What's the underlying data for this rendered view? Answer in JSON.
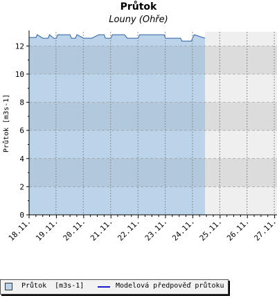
{
  "title": "Průtok",
  "subtitle": "Louny (Ohře)",
  "legend": {
    "item1": "Průtok  [m3s-1]",
    "item2": "Modelová předpověď průtoku"
  },
  "colors": {
    "area_fill": "#bcd4ea",
    "area_line": "#2a5f9e",
    "forecast_line": "#1a1acc",
    "band_observed": "#a8bdd2",
    "band_future": "#dcdcdc",
    "future_bg": "#efefef"
  },
  "chart_data": {
    "type": "area",
    "ylabel": "Průtok [m3s-1]",
    "xlabel": "",
    "ylim": [
      0,
      13
    ],
    "yticks": [
      0,
      2,
      4,
      6,
      8,
      10,
      12
    ],
    "x_tick_labels": [
      "18.11.",
      "19.11.",
      "20.11.",
      "21.11.",
      "22.11.",
      "23.11.",
      "24.11.",
      "25.11.",
      "26.11.",
      "27.11."
    ],
    "x_range_days": [
      0,
      9.2
    ],
    "observed_end_day": 6.45,
    "grid": true,
    "series": [
      {
        "name": "Průtok  [m3s-1]",
        "x_days": [
          0,
          0.25,
          0.3,
          0.5,
          0.7,
          0.75,
          0.9,
          1.0,
          1.05,
          1.5,
          1.55,
          1.7,
          1.75,
          2.0,
          2.3,
          2.55,
          2.75,
          2.8,
          3.0,
          3.05,
          3.5,
          3.6,
          4.0,
          4.05,
          4.5,
          4.95,
          5.0,
          5.05,
          5.55,
          5.6,
          5.95,
          6.0,
          6.05,
          6.45
        ],
        "values": [
          12.6,
          12.6,
          12.8,
          12.55,
          12.55,
          12.8,
          12.55,
          12.55,
          12.8,
          12.8,
          12.55,
          12.55,
          12.8,
          12.55,
          12.55,
          12.8,
          12.8,
          12.55,
          12.55,
          12.8,
          12.8,
          12.55,
          12.55,
          12.8,
          12.8,
          12.8,
          12.55,
          12.55,
          12.55,
          12.35,
          12.35,
          12.6,
          12.8,
          12.55
        ]
      }
    ]
  }
}
